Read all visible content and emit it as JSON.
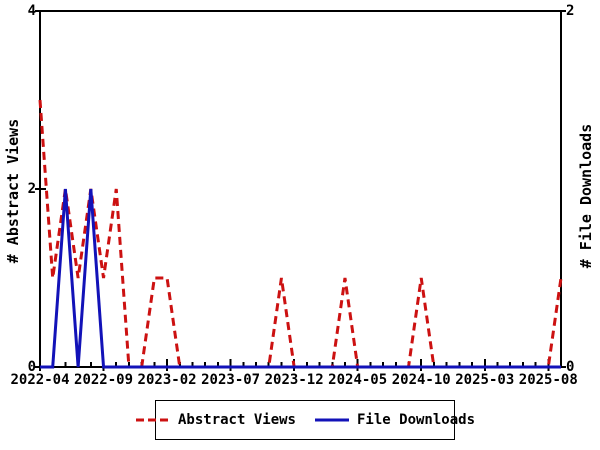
{
  "figure": {
    "background": "#ffffff",
    "frame_color": "#000000"
  },
  "axes": {
    "left": {
      "title": "# Abstract Views",
      "tick_values": [
        0,
        2,
        4
      ],
      "range": [
        0,
        4
      ]
    },
    "right": {
      "title": "# File Downloads",
      "tick_values": [
        0,
        2
      ],
      "range": [
        0,
        2
      ]
    },
    "x": {
      "tick_labels": [
        "2022-04",
        "2022-09",
        "2023-02",
        "2023-07",
        "2023-12",
        "2024-05",
        "2024-10",
        "2025-03",
        "2025-08"
      ],
      "major_tick_every_months": 5,
      "minor_tick_every_months": 1
    }
  },
  "legend": {
    "items": [
      {
        "label": "Abstract Views",
        "color": "#cc1111",
        "style": "dashed"
      },
      {
        "label": "File Downloads",
        "color": "#1212b8",
        "style": "solid"
      }
    ]
  },
  "chart_data": {
    "type": "line",
    "title": "",
    "xlabel": "",
    "ylabel_left": "# Abstract Views",
    "ylabel_right": "# File Downloads",
    "ylim_left": [
      0,
      4
    ],
    "ylim_right": [
      0,
      2
    ],
    "grid": false,
    "legend_position": "bottom-center",
    "x": [
      "2022-04",
      "2022-05",
      "2022-06",
      "2022-07",
      "2022-08",
      "2022-09",
      "2022-10",
      "2022-11",
      "2022-12",
      "2023-01",
      "2023-02",
      "2023-03",
      "2023-04",
      "2023-05",
      "2023-06",
      "2023-07",
      "2023-08",
      "2023-09",
      "2023-10",
      "2023-11",
      "2023-12",
      "2024-01",
      "2024-02",
      "2024-03",
      "2024-04",
      "2024-05",
      "2024-06",
      "2024-07",
      "2024-08",
      "2024-09",
      "2024-10",
      "2024-11",
      "2024-12",
      "2025-01",
      "2025-02",
      "2025-03",
      "2025-04",
      "2025-05",
      "2025-06",
      "2025-07",
      "2025-08",
      "2025-09"
    ],
    "series": [
      {
        "name": "Abstract Views",
        "axis": "left",
        "color": "#cc1111",
        "line_style": "dashed",
        "values": [
          3,
          1,
          2,
          1,
          2,
          1,
          2,
          0,
          0,
          1,
          1,
          0,
          0,
          0,
          0,
          0,
          0,
          0,
          0,
          1,
          0,
          0,
          0,
          0,
          1,
          0,
          0,
          0,
          0,
          0,
          1,
          0,
          0,
          0,
          0,
          0,
          0,
          0,
          0,
          0,
          0,
          1
        ]
      },
      {
        "name": "File Downloads",
        "axis": "right",
        "color": "#1212b8",
        "line_style": "solid",
        "values": [
          0,
          0,
          1,
          0,
          1,
          0,
          0,
          0,
          0,
          0,
          0,
          0,
          0,
          0,
          0,
          0,
          0,
          0,
          0,
          0,
          0,
          0,
          0,
          0,
          0,
          0,
          0,
          0,
          0,
          0,
          0,
          0,
          0,
          0,
          0,
          0,
          0,
          0,
          0,
          0,
          0,
          0
        ]
      }
    ]
  }
}
